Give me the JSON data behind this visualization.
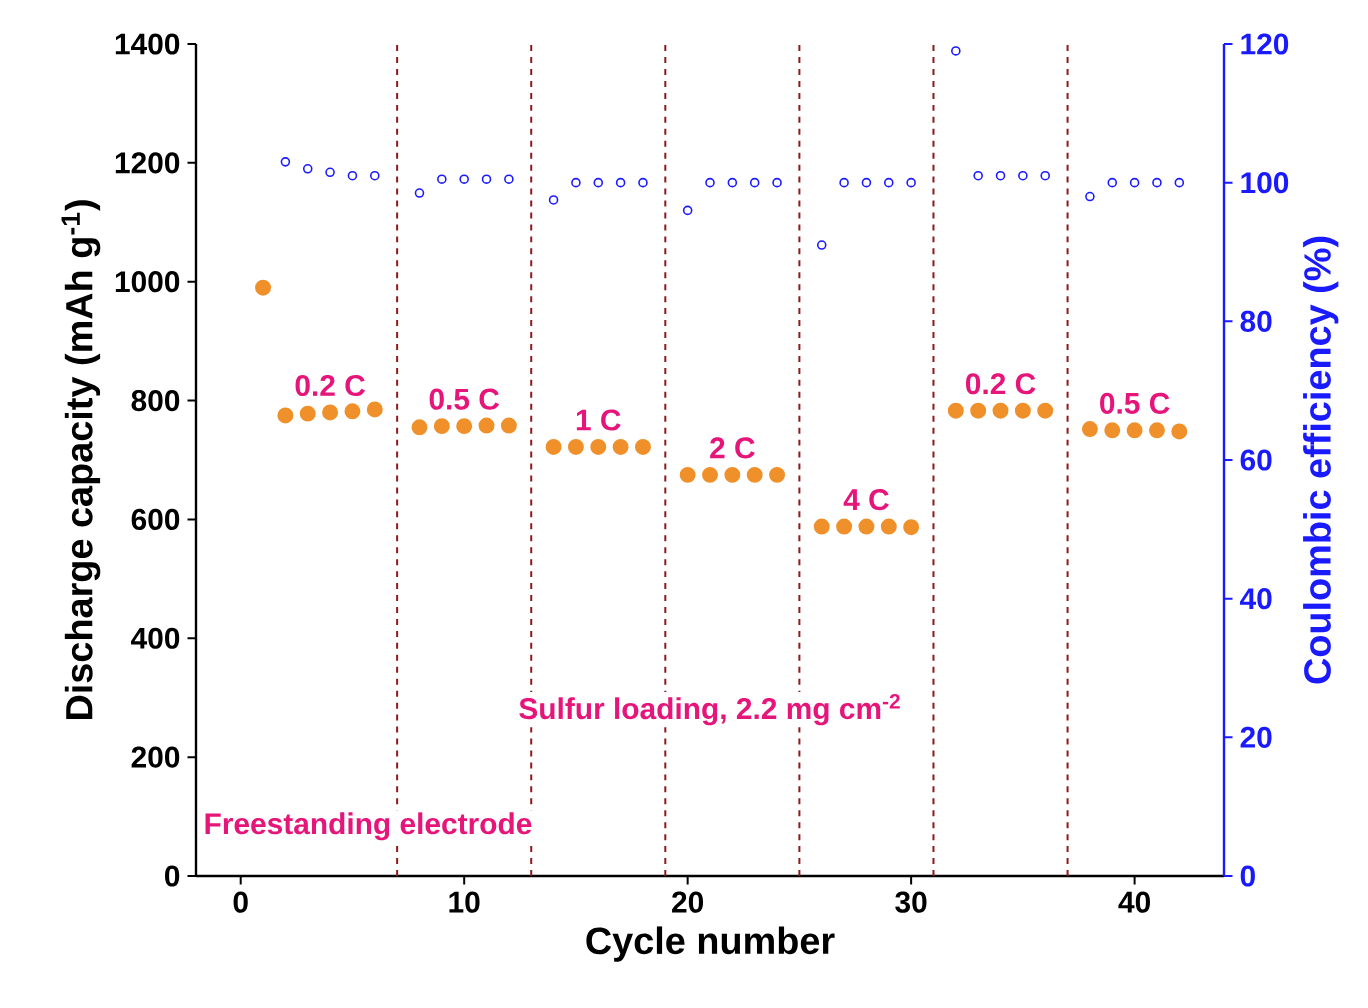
{
  "chart_data": {
    "type": "scatter",
    "xlabel": "Cycle number",
    "ylabel": "Discharge capacity (mAh g$^{-1}$)",
    "y2label": "Coulombic efficiency (%)",
    "xlim": [
      -2,
      44
    ],
    "xticks": [
      0,
      10,
      20,
      30,
      40
    ],
    "ylim": [
      0,
      1400
    ],
    "yticks": [
      0,
      200,
      400,
      600,
      800,
      1000,
      1200,
      1400
    ],
    "y2lim": [
      0,
      120
    ],
    "y2ticks": [
      0,
      20,
      40,
      60,
      80,
      100,
      120
    ],
    "marker": "circle",
    "grid": false,
    "legend": false,
    "series": [
      {
        "color": "#f0902a",
        "x": [
          1,
          2,
          3,
          4,
          5,
          6,
          8,
          9,
          10,
          11,
          12,
          14,
          15,
          16,
          17,
          18,
          20,
          21,
          22,
          23,
          24,
          26,
          27,
          28,
          29,
          30,
          32,
          33,
          34,
          35,
          36,
          38,
          39,
          40,
          41,
          42
        ],
        "values": [
          990,
          775,
          778,
          780,
          782,
          785,
          755,
          757,
          757,
          758,
          758,
          722,
          722,
          722,
          722,
          722,
          675,
          675,
          675,
          675,
          675,
          588,
          588,
          588,
          588,
          587,
          783,
          783,
          783,
          783,
          783,
          752,
          750,
          750,
          750,
          748
        ]
      },
      {
        "color": "#1a1aff",
        "axis": "y2",
        "x": [
          2,
          3,
          4,
          5,
          6,
          8,
          9,
          10,
          11,
          12,
          14,
          15,
          16,
          17,
          18,
          20,
          21,
          22,
          23,
          24,
          26,
          27,
          28,
          29,
          30,
          32,
          33,
          34,
          35,
          36,
          38,
          39,
          40,
          41,
          42
        ],
        "values": [
          103,
          102,
          101.5,
          101,
          101,
          98.5,
          100.5,
          100.5,
          100.5,
          100.5,
          97.5,
          100,
          100,
          100,
          100,
          96,
          100,
          100,
          100,
          100,
          91,
          100,
          100,
          100,
          100,
          119,
          101,
          101,
          101,
          101,
          98,
          100,
          100,
          100,
          100
        ]
      }
    ],
    "ref_lines": [
      {
        "axis": "x",
        "value": 7,
        "color": "#8b1a1a",
        "line_style": "dashed"
      },
      {
        "axis": "x",
        "value": 13,
        "color": "#8b1a1a",
        "line_style": "dashed"
      },
      {
        "axis": "x",
        "value": 19,
        "color": "#8b1a1a",
        "line_style": "dashed"
      },
      {
        "axis": "x",
        "value": 25,
        "color": "#8b1a1a",
        "line_style": "dashed"
      },
      {
        "axis": "x",
        "value": 31,
        "color": "#8b1a1a",
        "line_style": "dashed"
      },
      {
        "axis": "x",
        "value": 37,
        "color": "#8b1a1a",
        "line_style": "dashed"
      }
    ],
    "annotations": [
      {
        "text": "0.2 C",
        "x": 4,
        "y": 780
      },
      {
        "text": "0.5 C",
        "x": 10,
        "y": 757
      },
      {
        "text": "1 C",
        "x": 16,
        "y": 722
      },
      {
        "text": "2 C",
        "x": 22,
        "y": 675
      },
      {
        "text": "4 C",
        "x": 28,
        "y": 588
      },
      {
        "text": "0.2 C",
        "x": 34,
        "y": 783
      },
      {
        "text": "0.5 C",
        "x": 40,
        "y": 750
      },
      "Sulfur loading, 2.2 mg cm$^{-2}$",
      "Freestanding electrode"
    ]
  }
}
